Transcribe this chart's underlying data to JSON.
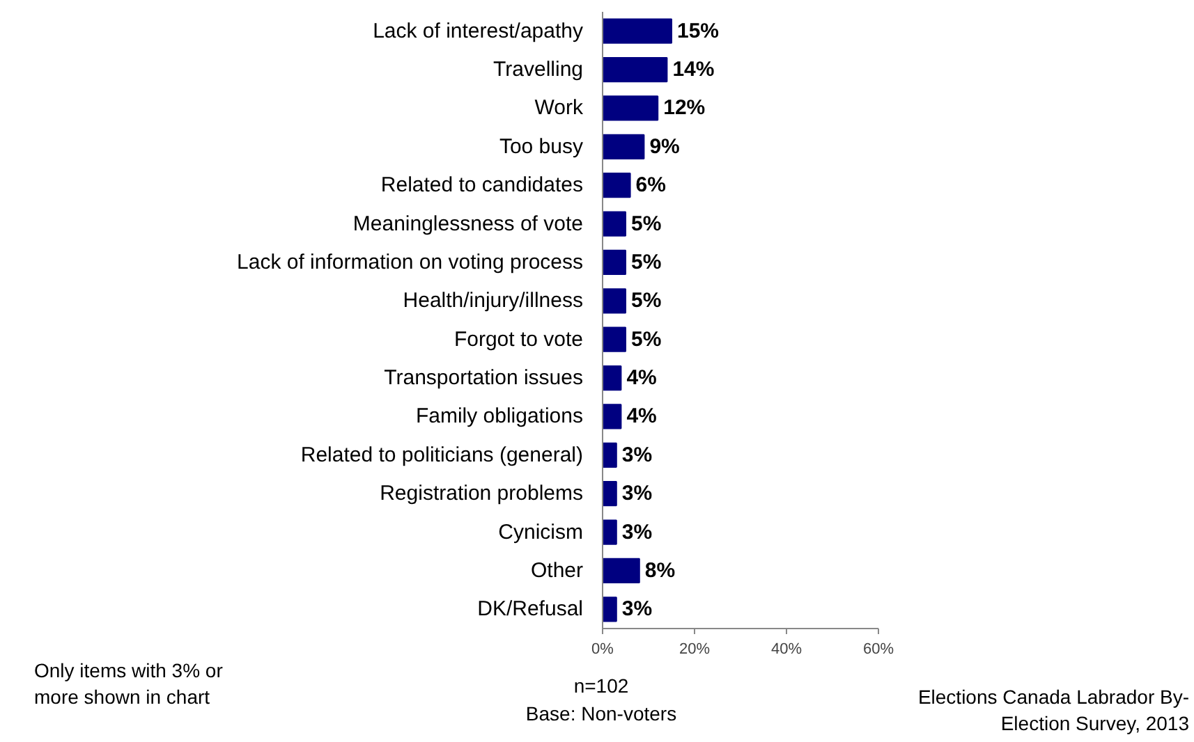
{
  "chart_data": {
    "type": "bar",
    "orientation": "horizontal",
    "categories": [
      "Lack of interest/apathy",
      "Travelling",
      "Work",
      "Too busy",
      "Related to candidates",
      "Meaninglessness of vote",
      "Lack of information on voting process",
      "Health/injury/illness",
      "Forgot to vote",
      "Transportation issues",
      "Family obligations",
      "Related to politicians (general)",
      "Registration problems",
      "Cynicism",
      "Other",
      "DK/Refusal"
    ],
    "values": [
      15,
      14,
      12,
      9,
      6,
      5,
      5,
      5,
      5,
      4,
      4,
      3,
      3,
      3,
      8,
      3
    ],
    "color": "#000080",
    "value_labels": [
      "15%",
      "14%",
      "12%",
      "9%",
      "6%",
      "5%",
      "5%",
      "5%",
      "5%",
      "4%",
      "4%",
      "3%",
      "3%",
      "3%",
      "8%",
      "3%"
    ],
    "xlim": [
      0,
      60
    ],
    "xticks": [
      {
        "value": 0,
        "label": "0%"
      },
      {
        "value": 20,
        "label": "20%"
      },
      {
        "value": 40,
        "label": "40%"
      },
      {
        "value": 60,
        "label": "60%"
      }
    ],
    "grid": false,
    "annotations": [
      "Only items with 3% or more shown in chart",
      "n=102",
      "Base: Non-voters",
      "Elections Canada Labrador By-Election Survey, 2013"
    ]
  }
}
